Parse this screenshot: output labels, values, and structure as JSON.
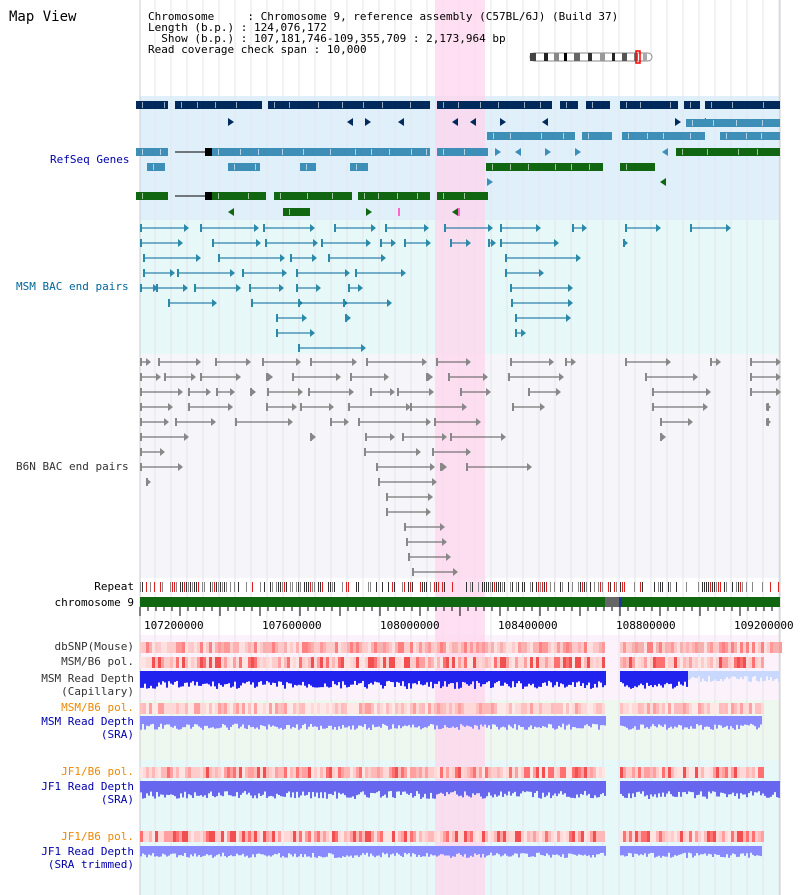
{
  "page": {
    "title": "Map View"
  },
  "header": {
    "chromosome_label": "Chromosome",
    "chromosome_value": "Chromosome 9, reference assembly (C57BL/6J) (Build 37)",
    "length_label": "Length (b.p.)",
    "length_value": "124,076,172",
    "show_label": "Show (b.p.)",
    "show_value": "107,181,746-109,355,709 : 2,173,964 bp",
    "coverage_label": "Read coverage check span",
    "coverage_value": "10,000"
  },
  "tracks": {
    "refseq": {
      "label": "RefSeq Genes",
      "color": "#0000aa"
    },
    "msm_bac": {
      "label": "MSM BAC end pairs",
      "color": "#006699"
    },
    "b6n_bac": {
      "label": "B6N BAC end pairs",
      "color": "#333333"
    },
    "repeat": {
      "label": "Repeat"
    },
    "chromosome": {
      "label": "chromosome 9"
    },
    "dbsnp": {
      "label": "dbSNP(Mouse)"
    },
    "msm_b6_pol": {
      "label": "MSM/B6 pol."
    },
    "msm_depth_cap": {
      "label": "MSM Read Depth",
      "sub": "(Capillary)"
    },
    "msm_b6_pol2": {
      "label": "MSM/B6 pol.",
      "color": "#ee8800"
    },
    "msm_depth_sra": {
      "label": "MSM Read Depth",
      "sub": "(SRA)",
      "color": "#0000aa"
    },
    "jf1_b6_pol": {
      "label": "JF1/B6 pol.",
      "color": "#ee8800"
    },
    "jf1_depth_sra": {
      "label": "JF1 Read Depth",
      "sub": "(SRA)",
      "color": "#0000aa"
    },
    "jf1_b6_pol2": {
      "label": "JF1/B6 pol.",
      "color": "#ee8800"
    },
    "jf1_depth_trim": {
      "label": "JF1 Read Depth",
      "sub": "(SRA trimmed)",
      "color": "#0000aa"
    }
  },
  "axis": {
    "ticks": [
      "107200000",
      "107600000",
      "108000000",
      "108400000",
      "108800000",
      "109200000"
    ]
  },
  "colors": {
    "refseq_bg": "#dff0fa",
    "msm_bg": "#e6f8f8",
    "b6n_bg": "#f6f6fa",
    "highlight": "#ffd5ee",
    "gene_dark": "#002a5c",
    "gene_mid": "#3d8fb8",
    "gene_green": "#116611",
    "chromosome_bar": "#116611"
  }
}
